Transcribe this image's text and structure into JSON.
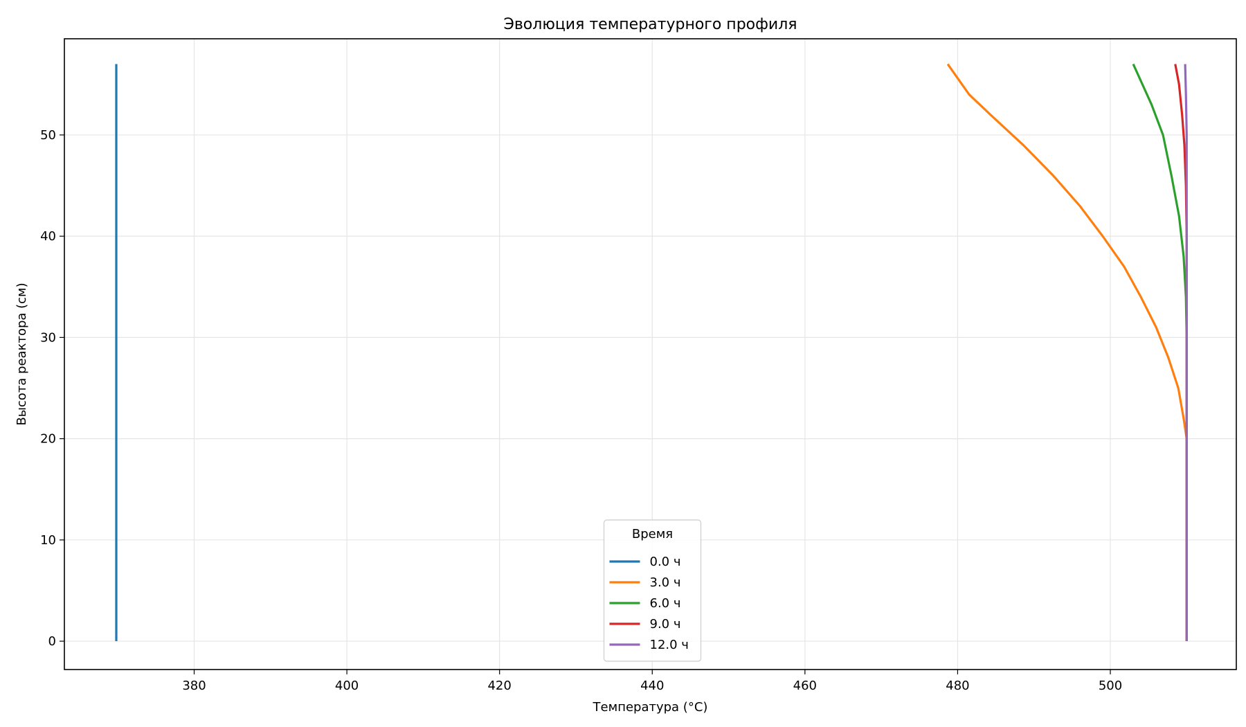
{
  "chart_data": {
    "type": "line",
    "title": "Эволюция температурного профиля",
    "xlabel": "Температура (°C)",
    "ylabel": "Высота реактора (см)",
    "xlim": [
      363,
      516.5
    ],
    "ylim": [
      -2.8,
      59.5
    ],
    "xticks": [
      380,
      400,
      420,
      440,
      460,
      480,
      500
    ],
    "yticks": [
      0,
      10,
      20,
      30,
      40,
      50
    ],
    "grid": true,
    "legend": {
      "title": "Время",
      "placement": "bottom-center"
    },
    "series": [
      {
        "name": "0.0 ч",
        "color": "#1f77b4",
        "points": [
          [
            369.8,
            0
          ],
          [
            369.8,
            57
          ]
        ]
      },
      {
        "name": "3.0 ч",
        "color": "#ff7f0e",
        "points": [
          [
            510.0,
            0
          ],
          [
            510.0,
            10
          ],
          [
            510.0,
            20
          ],
          [
            509.6,
            22
          ],
          [
            508.9,
            25
          ],
          [
            507.6,
            28
          ],
          [
            506.0,
            31
          ],
          [
            504.0,
            34
          ],
          [
            501.8,
            37
          ],
          [
            499.0,
            40
          ],
          [
            496.0,
            43
          ],
          [
            492.5,
            46
          ],
          [
            488.6,
            49
          ],
          [
            484.3,
            52
          ],
          [
            481.5,
            54
          ],
          [
            478.7,
            57
          ]
        ]
      },
      {
        "name": "6.0 ч",
        "color": "#2ca02c",
        "points": [
          [
            510.0,
            0
          ],
          [
            510.0,
            20
          ],
          [
            510.0,
            30
          ],
          [
            509.9,
            34
          ],
          [
            509.6,
            38
          ],
          [
            509.0,
            42
          ],
          [
            508.0,
            46
          ],
          [
            506.9,
            50
          ],
          [
            505.4,
            53
          ],
          [
            503.0,
            57
          ]
        ]
      },
      {
        "name": "9.0 ч",
        "color": "#d62728",
        "points": [
          [
            510.0,
            0
          ],
          [
            510.0,
            30
          ],
          [
            510.0,
            40
          ],
          [
            509.9,
            45
          ],
          [
            509.7,
            49
          ],
          [
            509.4,
            52
          ],
          [
            509.0,
            55
          ],
          [
            508.5,
            57
          ]
        ]
      },
      {
        "name": "12.0 ч",
        "color": "#9467bd",
        "points": [
          [
            510.0,
            0
          ],
          [
            510.0,
            40
          ],
          [
            510.0,
            50
          ],
          [
            509.9,
            54
          ],
          [
            509.8,
            57
          ]
        ]
      }
    ]
  }
}
